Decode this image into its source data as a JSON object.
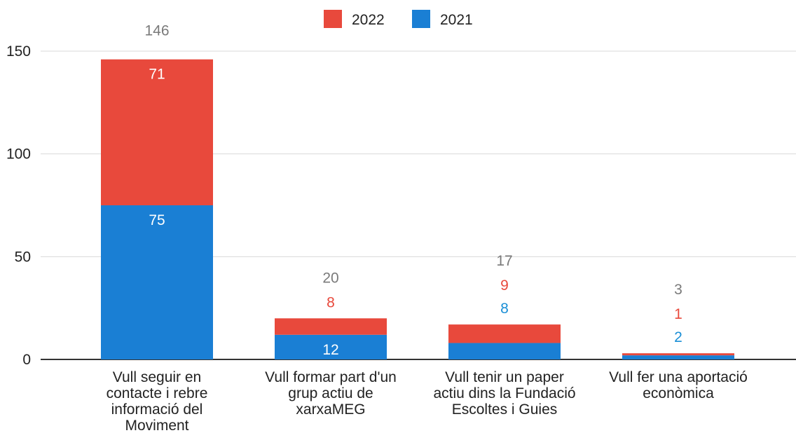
{
  "chart_data": {
    "type": "bar",
    "stacked": true,
    "categories": [
      [
        "Vull seguir en",
        "contacte i rebre",
        "informació del",
        "Moviment"
      ],
      [
        "Vull formar part d'un",
        "grup actiu de",
        "xarxaMEG"
      ],
      [
        "Vull tenir un paper",
        "actiu dins la Fundació",
        "Escoltes i Guies"
      ],
      [
        "Vull fer una aportació",
        "econòmica"
      ]
    ],
    "series": [
      {
        "name": "2021",
        "color": "#1a7fd4",
        "values": [
          75,
          12,
          8,
          2
        ]
      },
      {
        "name": "2022",
        "color": "#e8493c",
        "values": [
          71,
          8,
          9,
          1
        ]
      }
    ],
    "totals": [
      146,
      20,
      17,
      3
    ],
    "label_colors": {
      "total": "#7a7a7a",
      "2022_outside": "#e8493c",
      "2021_outside": "#1a8fd6",
      "inside": "#ffffff"
    },
    "legend": {
      "position": "top",
      "order": [
        "2022",
        "2021"
      ]
    },
    "ylim": [
      0,
      150
    ],
    "yticks": [
      0,
      50,
      100,
      150
    ],
    "grid": true,
    "title": "",
    "xlabel": "",
    "ylabel": ""
  }
}
